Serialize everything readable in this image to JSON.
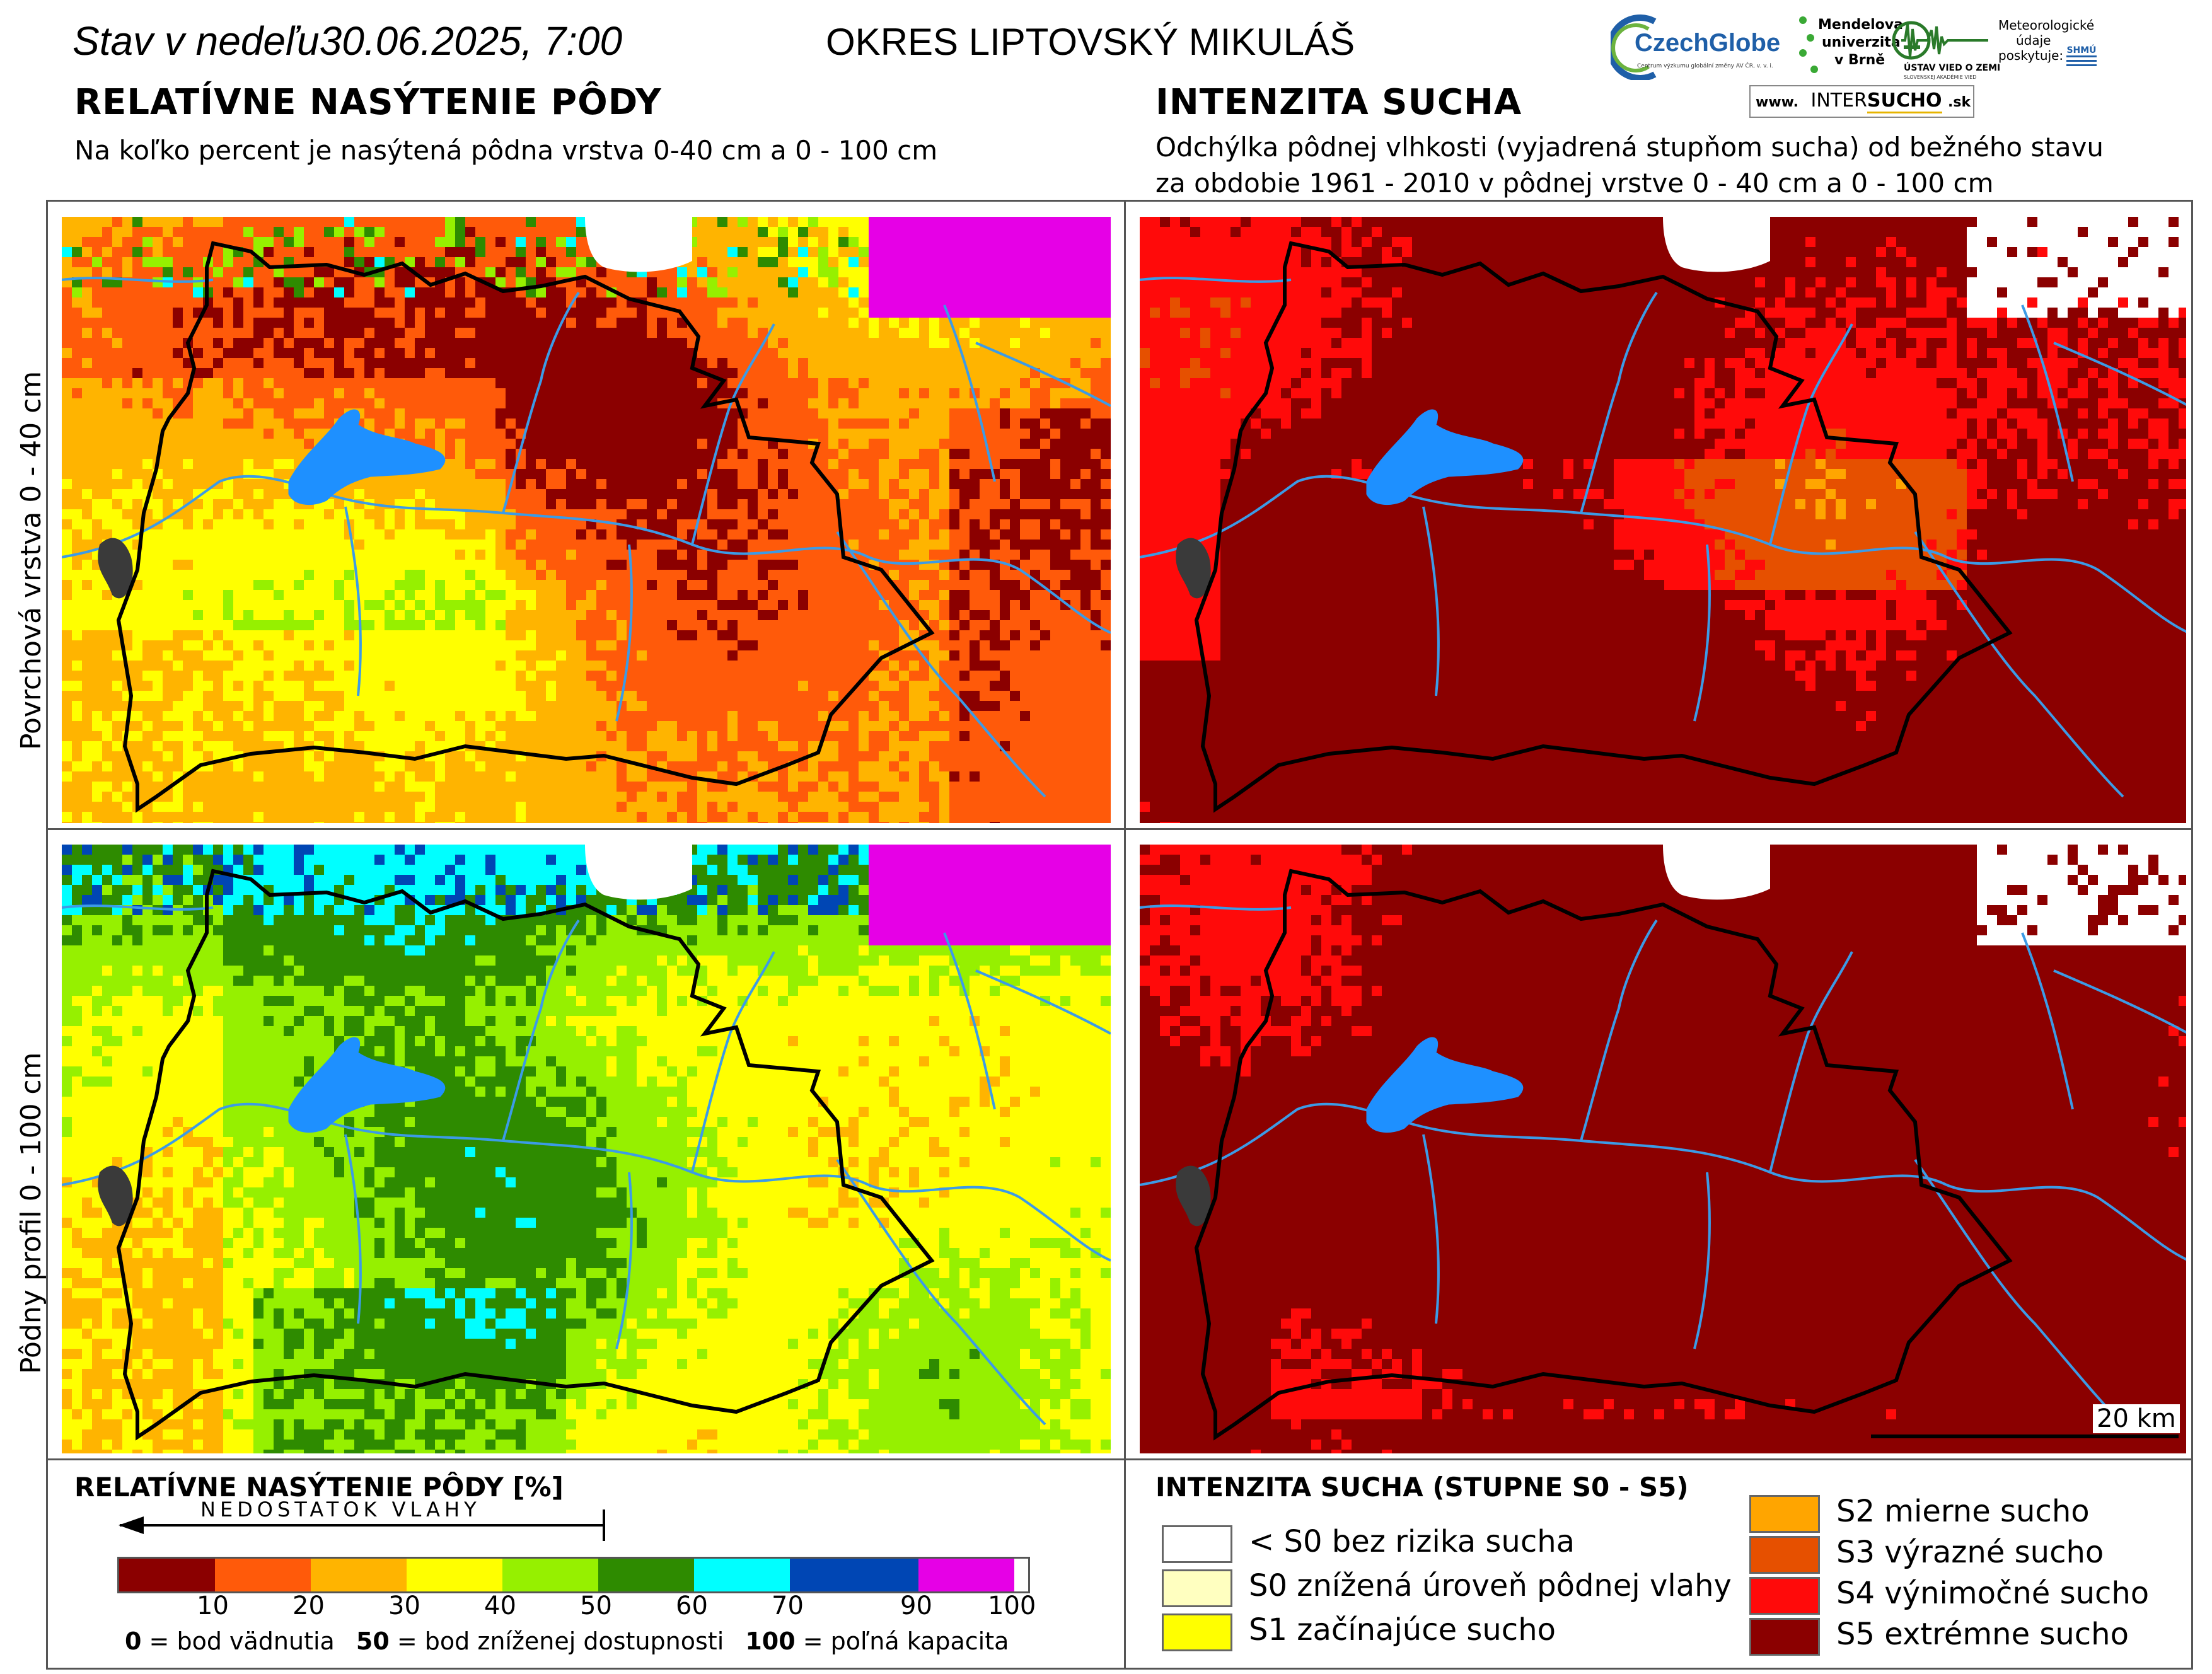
{
  "header": {
    "date_line": "Stav v nedeľu30.06.2025, 7:00",
    "district": "OKRES  LIPTOVSKÝ MIKULÁŠ"
  },
  "left_section": {
    "title": "RELATÍVNE NASÝTENIE PÔDY",
    "subtitle": "Na koľko percent je nasýtená pôdna vrstva 0-40 cm a 0 - 100 cm"
  },
  "right_section": {
    "title": "INTENZITA SUCHA",
    "subtitle_1": "Odchýlka pôdnej vlhkosti (vyjadrená stupňom sucha) od bežného stavu",
    "subtitle_2": "za obdobie 1961 - 2010 v pôdnej vrstve 0 - 40 cm a 0 - 100 cm"
  },
  "row_labels": {
    "top": "Povrchová vrstva 0 - 40 cm",
    "bottom": "Pôdny profil 0 - 100 cm"
  },
  "logos": {
    "czechglobe": "CzechGlobe",
    "czechglobe_sub": "Centrum výzkumu globální změny AV ČR, v. v. i.",
    "mendelu_1": "Mendelova",
    "mendelu_2": "univerzita",
    "mendelu_3": "v Brně",
    "ustav": "ÚSTAV VIED O ZEMI",
    "ustav_sub": "SLOVENSKEJ AKADÉMIE VIED",
    "meteo_1": "Meteorologické",
    "meteo_2": "údaje",
    "meteo_3": "poskytuje:",
    "shmu": "SHMÚ",
    "intersucho_www": "www.",
    "intersucho_name_1": "INTER",
    "intersucho_name_2": "SUCHO",
    "intersucho_tld": ".sk"
  },
  "scale_bar": {
    "label": "20 km"
  },
  "saturation_legend": {
    "title": "RELATÍVNE NASÝTENIE PÔDY [%]",
    "arrow_label": "NEDOSTATOK VLAHY",
    "bins": [
      {
        "color": "#8b0000",
        "label": "10"
      },
      {
        "color": "#ff5a0a",
        "label": "20"
      },
      {
        "color": "#ffb400",
        "label": "30"
      },
      {
        "color": "#ffff00",
        "label": "40"
      },
      {
        "color": "#96f000",
        "label": "50"
      },
      {
        "color": "#2e8b00",
        "label": "60"
      },
      {
        "color": "#00ffff",
        "label": "70"
      },
      {
        "color": "#0046b4",
        "label": "90"
      },
      {
        "color": "#e600e6",
        "label": "100"
      }
    ],
    "note_0": "0",
    "note_0_text": " = bod vädnutia",
    "note_50": "50",
    "note_50_text": " = bod zníženej dostupnosti",
    "note_100": "100",
    "note_100_text": " = poľná kapacita"
  },
  "drought_legend": {
    "title": "INTENZITA SUCHA (STUPNE S0 - S5)",
    "items_left": [
      {
        "color": "#ffffff",
        "label": "< S0 bez rizika sucha"
      },
      {
        "color": "#ffffc0",
        "label": "S0 znížená úroveň pôdnej vlahy"
      },
      {
        "color": "#ffff00",
        "label": "S1 začínajúce sucho"
      }
    ],
    "items_right": [
      {
        "color": "#ffa500",
        "label": "S2 mierne sucho"
      },
      {
        "color": "#e65000",
        "label": "S3 výrazné sucho"
      },
      {
        "color": "#ff0a0a",
        "label": "S4 výnimočné sucho"
      },
      {
        "color": "#8b0000",
        "label": "S5 extrémne sucho"
      }
    ]
  },
  "colors": {
    "water": "#1e90ff",
    "river": "#3c9be6",
    "district_border": "#000000",
    "municipality_border": "#5a5a5a",
    "frame": "#555555"
  }
}
